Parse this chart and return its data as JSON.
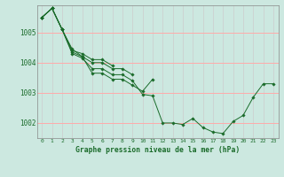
{
  "title": "Graphe pression niveau de la mer (hPa)",
  "bg_color": "#cce8e0",
  "grid_color_h": "#ffaaaa",
  "grid_color_v": "#cccccc",
  "line_color": "#1a6b2a",
  "xlim": [
    -0.5,
    23.5
  ],
  "ylim": [
    1001.5,
    1005.9
  ],
  "yticks": [
    1002,
    1003,
    1004,
    1005
  ],
  "xticks": [
    0,
    1,
    2,
    3,
    4,
    5,
    6,
    7,
    8,
    9,
    10,
    11,
    12,
    13,
    14,
    15,
    16,
    17,
    18,
    19,
    20,
    21,
    22,
    23
  ],
  "series": [
    [
      0,
      1005.5,
      1,
      1005.8,
      2,
      1005.1,
      3,
      1004.45,
      4,
      1004.2,
      5,
      1003.65,
      6,
      1003.65,
      7,
      1003.45,
      8,
      1003.45,
      9,
      1003.25,
      10,
      1003.05,
      11,
      1003.45
    ],
    [
      0,
      1005.5,
      1,
      1005.8,
      2,
      1005.1,
      3,
      1004.3,
      4,
      1004.15,
      5,
      1003.8,
      6,
      1003.8,
      7,
      1003.6,
      8,
      1003.6,
      9,
      1003.4,
      10,
      1002.95,
      11,
      1002.9,
      12,
      1002.0,
      13,
      1002.0,
      14,
      1001.95,
      15,
      1002.15,
      16,
      1001.85,
      17,
      1001.7,
      18,
      1001.65,
      19,
      1002.05,
      20,
      1002.25,
      21,
      1002.85,
      22,
      1003.3,
      23,
      1003.3
    ],
    [
      0,
      1005.5,
      1,
      1005.8,
      2,
      1005.1,
      3,
      1004.35,
      4,
      1004.2,
      5,
      1004.0,
      6,
      1004.0,
      7,
      1003.8,
      8,
      1003.8,
      9,
      1003.6
    ],
    [
      0,
      1005.5,
      1,
      1005.8,
      2,
      1005.1,
      3,
      1004.4,
      4,
      1004.3,
      5,
      1004.1,
      6,
      1004.1,
      7,
      1003.9
    ]
  ]
}
